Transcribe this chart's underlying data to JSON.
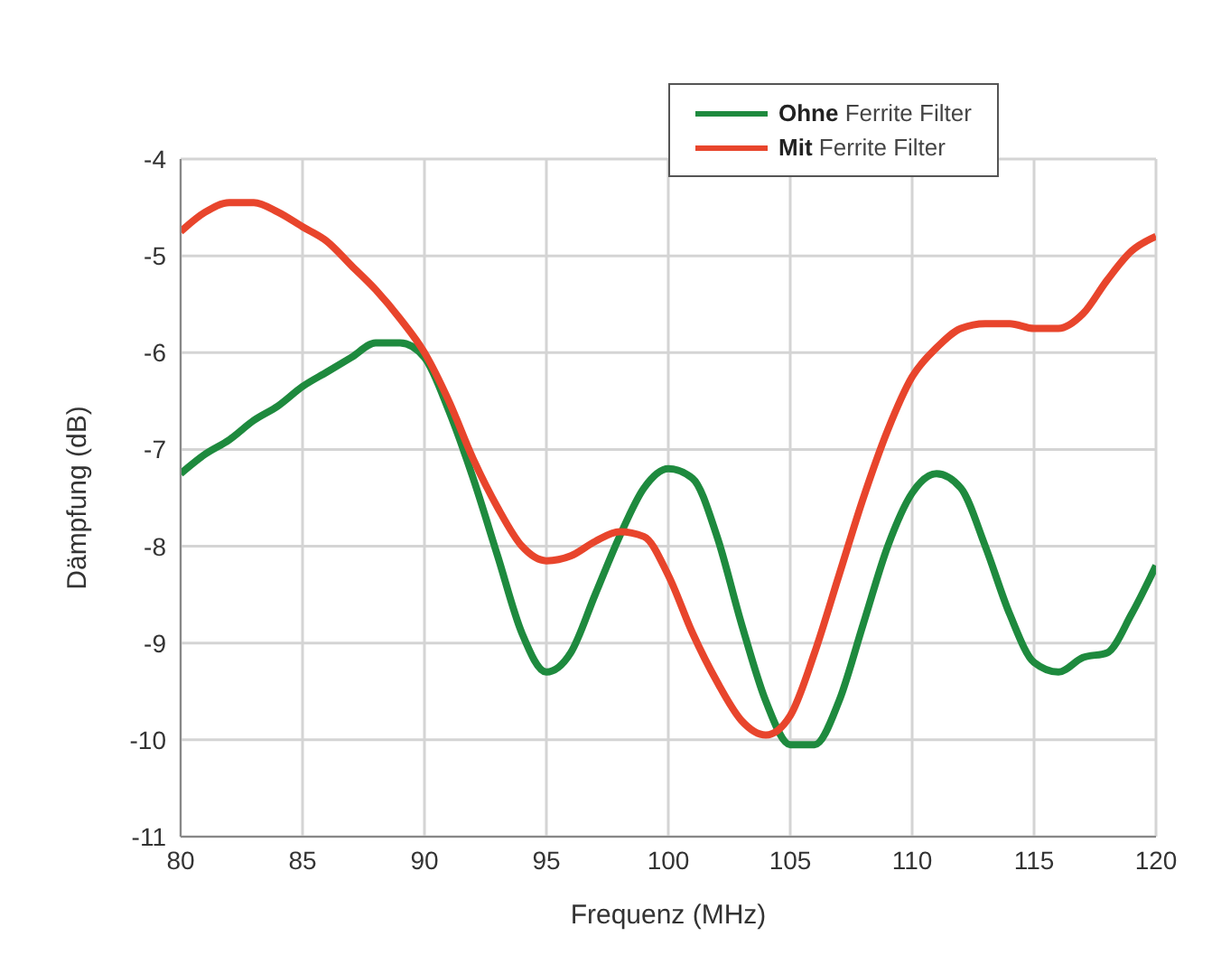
{
  "chart_data": {
    "type": "line",
    "xlabel": "Frequenz  (MHz)",
    "ylabel": "Dämpfung (dB)",
    "xlim": [
      80,
      120
    ],
    "xticks": [
      80,
      85,
      90,
      95,
      100,
      105,
      110,
      115,
      120
    ],
    "ylim": [
      -11,
      -4
    ],
    "yticks": [
      -11,
      -10,
      -9,
      -8,
      -7,
      -6,
      -5,
      -4
    ],
    "grid": true,
    "legend": "top right",
    "marker": "none",
    "line_style": "solid",
    "x": [
      80,
      81,
      82,
      83,
      84,
      85,
      86,
      87,
      88,
      89,
      90,
      91,
      92,
      93,
      94,
      95,
      96,
      97,
      98,
      99,
      100,
      101,
      102,
      103,
      104,
      105,
      106,
      107,
      108,
      109,
      110,
      111,
      112,
      113,
      114,
      115,
      116,
      117,
      118,
      119,
      120
    ],
    "series": [
      {
        "name": "Ohne Ferrite Filter",
        "color": "#1e8a3e",
        "values": [
          -7.25,
          -7.05,
          -6.9,
          -6.7,
          -6.55,
          -6.35,
          -6.2,
          -6.05,
          -5.9,
          -5.9,
          -6.05,
          -6.6,
          -7.3,
          -8.1,
          -8.9,
          -9.3,
          -9.1,
          -8.5,
          -7.9,
          -7.4,
          -7.2,
          -7.3,
          -7.9,
          -8.8,
          -9.6,
          -10.05,
          -10.05,
          -9.6,
          -8.8,
          -8.0,
          -7.45,
          -7.25,
          -7.4,
          -8.0,
          -8.7,
          -9.2,
          -9.3,
          -9.15,
          -9.1,
          -8.7,
          -8.2
        ]
      },
      {
        "name": "Mit Ferrite Filter",
        "color": "#e8452c",
        "values": [
          -4.75,
          -4.55,
          -4.45,
          -4.45,
          -4.55,
          -4.7,
          -4.85,
          -5.1,
          -5.35,
          -5.65,
          -6.0,
          -6.5,
          -7.1,
          -7.6,
          -8.0,
          -8.15,
          -8.1,
          -7.95,
          -7.85,
          -7.9,
          -8.3,
          -8.9,
          -9.4,
          -9.8,
          -9.95,
          -9.75,
          -9.1,
          -8.3,
          -7.5,
          -6.8,
          -6.25,
          -5.95,
          -5.75,
          -5.7,
          -5.7,
          -5.75,
          -5.75,
          -5.6,
          -5.25,
          -4.95,
          -4.8
        ]
      }
    ]
  }
}
